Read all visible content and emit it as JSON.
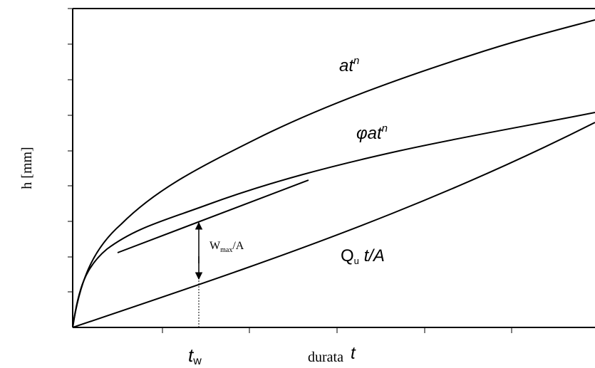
{
  "diagram": {
    "ylabel": "h [mm]",
    "xlabel_word": "durata",
    "xlabel_symbol": "t",
    "tw_symbol": "t",
    "tw_subscript": "w",
    "curve_labels": {
      "atn_base": "at",
      "atn_exp": "n",
      "phi_base": "φat",
      "phi_exp": "n",
      "qu_Q": "Q",
      "qu_sub": "u",
      "qu_rest": " t/A"
    },
    "wmax_label": {
      "W": "W",
      "sub": "max",
      "rest": "/A"
    },
    "curves": [
      {
        "name": "a t^n",
        "description": "upper power curve"
      },
      {
        "name": "phi a t^n",
        "description": "middle power curve"
      },
      {
        "name": "Qu t / A",
        "description": "straight line from origin"
      },
      {
        "name": "tangent",
        "description": "tangent to phi a t^n at t_w"
      }
    ],
    "colors": {
      "line": "#000000",
      "background": "#ffffff"
    }
  }
}
